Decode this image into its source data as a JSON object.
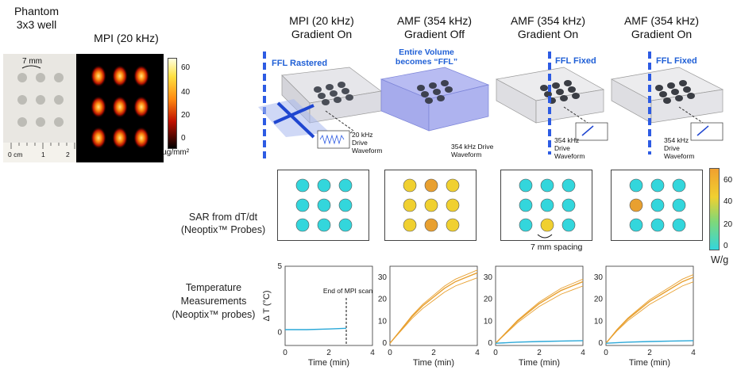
{
  "left": {
    "phantom_title": "Phantom",
    "phantom_subtitle": "3x3 well",
    "mpi_title": "MPI (20 kHz)",
    "spacing_label": "7 mm",
    "ruler_labels": [
      "0 cm",
      "1",
      "2"
    ],
    "colorbar_ticks": [
      "60",
      "40",
      "20",
      "0"
    ],
    "colorbar_unit": "µg/mm²"
  },
  "columns": [
    {
      "title": "MPI (20 kHz)",
      "subtitle": "Gradient On",
      "ffl_label": "FFL Rastered",
      "waveform": "20 kHz Drive Waveform"
    },
    {
      "title": "AMF (354 kHz)",
      "subtitle": "Gradient Off",
      "ffl_label": "Entire Volume becomes “FFL”",
      "waveform": "354 kHz Drive Waveform"
    },
    {
      "title": "AMF (354 kHz)",
      "subtitle": "Gradient On",
      "ffl_label": "FFL Fixed",
      "waveform": "354 kHz Drive Waveform"
    },
    {
      "title": "AMF (354 kHz)",
      "subtitle": "Gradient On",
      "ffl_label": "FFL Fixed",
      "waveform": "354 kHz Drive Waveform"
    }
  ],
  "sar": {
    "row_label_1": "SAR from dT/dt",
    "row_label_2": "(Neoptix™ Probes)",
    "spacing_label": "7 mm spacing",
    "colorbar_ticks": [
      "60",
      "40",
      "20",
      "0"
    ],
    "colorbar_unit": "W/g",
    "colors": {
      "low": "#33d6dc",
      "mid": "#f0d030",
      "high": "#e8a030"
    },
    "grids": [
      [
        "low",
        "low",
        "low",
        "low",
        "low",
        "low",
        "low",
        "low",
        "low"
      ],
      [
        "mid",
        "high",
        "mid",
        "mid",
        "mid",
        "mid",
        "mid",
        "high",
        "mid"
      ],
      [
        "low",
        "low",
        "low",
        "low",
        "low",
        "low",
        "low",
        "mid",
        "low"
      ],
      [
        "low",
        "low",
        "low",
        "high",
        "low",
        "low",
        "low",
        "low",
        "low"
      ]
    ]
  },
  "temp": {
    "row_label_1": "Temperature",
    "row_label_2": "Measurements",
    "row_label_3": "(Neoptix™ probes)",
    "ylabel": "Δ T (°C)",
    "xlabel": "Time (min)",
    "annotation": "End of MPI scan",
    "xticks": [
      "0",
      "2",
      "4"
    ],
    "yticks_1": [
      "0",
      "5"
    ],
    "yticks_2": [
      "0",
      "10",
      "20",
      "30"
    ]
  },
  "chart_data": [
    {
      "type": "line",
      "xlabel": "Time (min)",
      "ylabel": "Δ T (°C)",
      "xlim": [
        0,
        4
      ],
      "ylim": [
        -1,
        5
      ],
      "series": [
        {
          "x": [
            0,
            1,
            2,
            2.8
          ],
          "y": [
            0.2,
            0.2,
            0.25,
            0.3
          ]
        }
      ]
    },
    {
      "type": "line",
      "xlabel": "Time (min)",
      "xlim": [
        0,
        4
      ],
      "ylim": [
        -1,
        35
      ],
      "series": [
        {
          "x": [
            0,
            0.5,
            1,
            1.5,
            2,
            2.5,
            3,
            3.5,
            4
          ],
          "y": [
            0,
            6,
            12,
            17,
            21,
            25,
            28,
            30,
            32
          ]
        }
      ]
    },
    {
      "type": "line",
      "xlabel": "Time (min)",
      "xlim": [
        0,
        4
      ],
      "ylim": [
        -1,
        35
      ],
      "series": [
        {
          "x": [
            0,
            0.5,
            1,
            1.5,
            2,
            2.5,
            3,
            3.5,
            4
          ],
          "y": [
            0,
            5,
            10,
            14,
            18,
            21,
            24,
            26,
            28
          ]
        },
        {
          "x": [
            0,
            1,
            2,
            3,
            4
          ],
          "y": [
            0,
            0.5,
            0.8,
            1,
            1.2
          ]
        }
      ]
    },
    {
      "type": "line",
      "xlabel": "Time (min)",
      "xlim": [
        0,
        4
      ],
      "ylim": [
        -1,
        35
      ],
      "series": [
        {
          "x": [
            0,
            0.5,
            1,
            1.5,
            2,
            2.5,
            3,
            3.5,
            4
          ],
          "y": [
            0,
            6,
            11,
            15,
            19,
            22,
            25,
            28,
            30
          ]
        },
        {
          "x": [
            0,
            1,
            2,
            3,
            4
          ],
          "y": [
            0,
            0.5,
            0.8,
            1,
            1.2
          ]
        }
      ]
    }
  ]
}
